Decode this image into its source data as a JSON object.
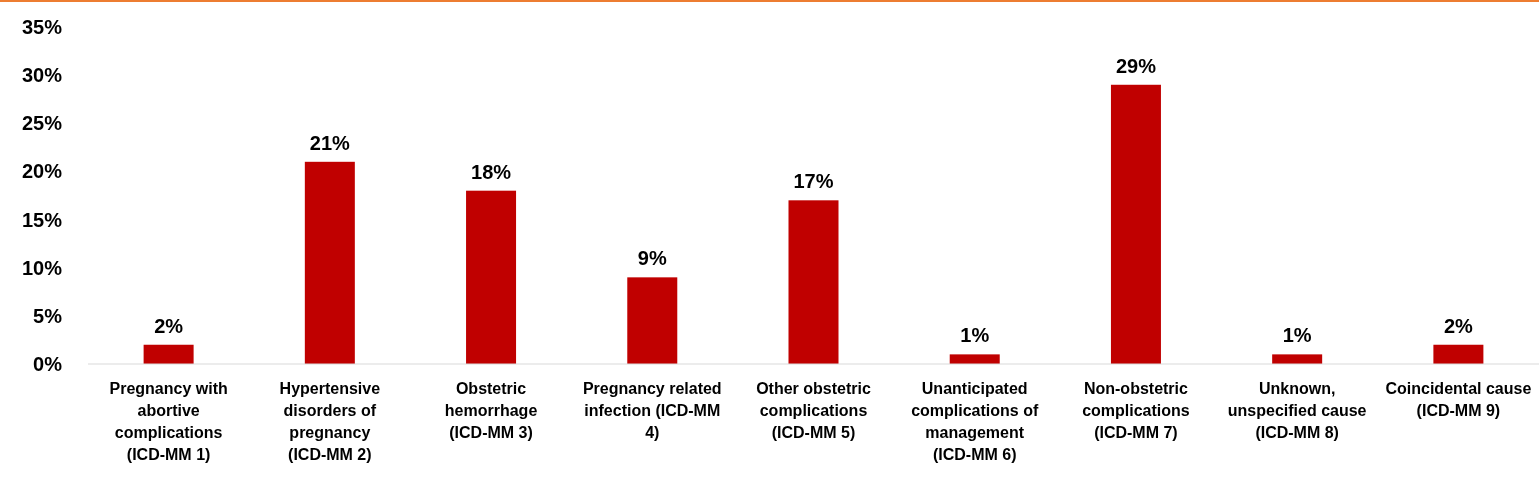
{
  "chart_data": {
    "type": "bar",
    "categories": [
      "Pregnancy with abortive complications (ICD-MM 1)",
      "Hypertensive disorders of pregnancy (ICD-MM 2)",
      "Obstetric hemorrhage (ICD-MM 3)",
      "Pregnancy related infection (ICD-MM 4)",
      "Other obstetric complications (ICD-MM 5)",
      "Unanticipated complications of management (ICD-MM 6)",
      "Non-obstetric complications (ICD-MM 7)",
      "Unknown, unspecified cause (ICD-MM 8)",
      "Coincidental cause (ICD-MM 9)"
    ],
    "values": [
      2,
      21,
      18,
      9,
      17,
      1,
      29,
      1,
      2
    ],
    "value_labels": [
      "2%",
      "21%",
      "18%",
      "9%",
      "17%",
      "1%",
      "29%",
      "1%",
      "2%"
    ],
    "color": "#c00000",
    "ylim": [
      0,
      35
    ],
    "yticks": [
      {
        "value": 0,
        "label": "0%"
      },
      {
        "value": 5,
        "label": "5%"
      },
      {
        "value": 10,
        "label": "10%"
      },
      {
        "value": 15,
        "label": "15%"
      },
      {
        "value": 20,
        "label": "20%"
      },
      {
        "value": 25,
        "label": "25%"
      },
      {
        "value": 30,
        "label": "30%"
      },
      {
        "value": 35,
        "label": "35%"
      }
    ],
    "grid": false
  }
}
